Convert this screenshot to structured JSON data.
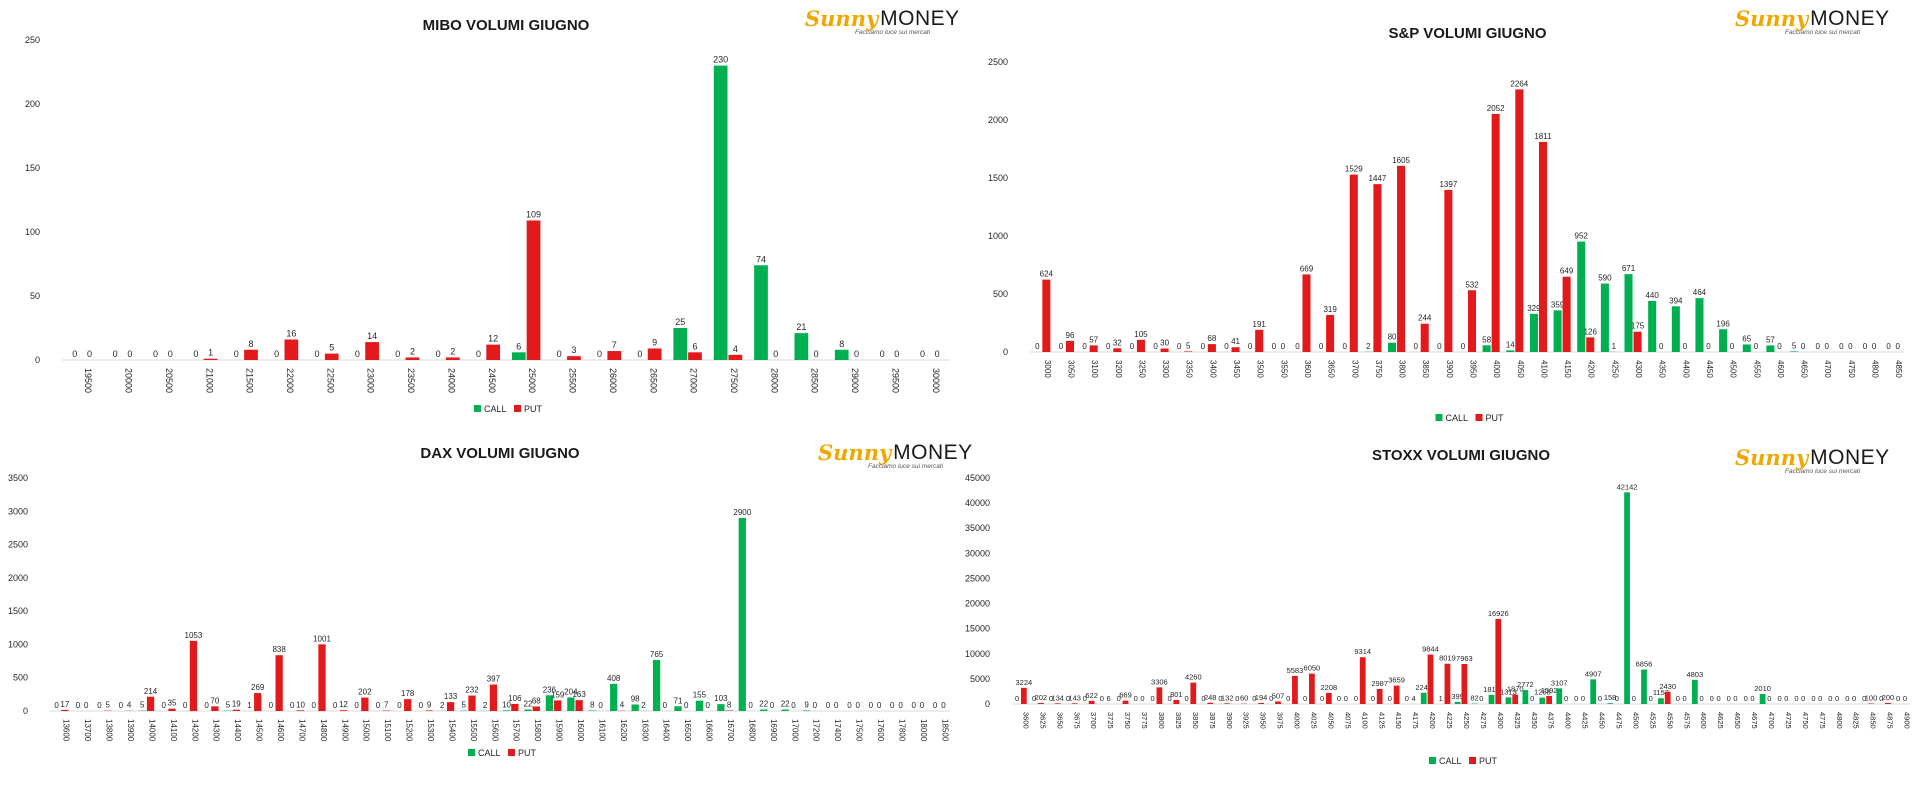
{
  "brand": {
    "name_a": "Sunny",
    "name_b": "MONEY",
    "tagline": "Facciamo luce sui mercati"
  },
  "colors": {
    "call": "#00b050",
    "put": "#e31a1c",
    "axis": "#d9d9d9",
    "text": "#262626"
  },
  "chart_data": [
    {
      "type": "bar",
      "title": "MIBO VOLUMI GIUGNO",
      "legend": "bottom-center",
      "ylim": [
        0,
        250
      ],
      "yticks": [
        0,
        50,
        100,
        150,
        200,
        250
      ],
      "categories": [
        "19500",
        "20000",
        "20500",
        "21000",
        "21500",
        "22000",
        "22500",
        "23000",
        "23500",
        "24000",
        "24500",
        "25000",
        "25500",
        "26000",
        "26500",
        "27000",
        "27500",
        "28000",
        "28500",
        "29000",
        "29500",
        "30000"
      ],
      "series": [
        {
          "name": "CALL",
          "values": [
            0,
            0,
            0,
            0,
            0,
            0,
            0,
            0,
            0,
            0,
            0,
            6,
            0,
            0,
            0,
            25,
            230,
            74,
            21,
            8,
            0,
            0
          ]
        },
        {
          "name": "PUT",
          "values": [
            0,
            0,
            0,
            1,
            8,
            16,
            5,
            14,
            2,
            2,
            12,
            109,
            3,
            7,
            9,
            6,
            4,
            0,
            0,
            0,
            0,
            0
          ]
        }
      ]
    },
    {
      "type": "bar",
      "title": "S&P VOLUMI GIUGNO",
      "legend": "bottom-center",
      "ylim": [
        0,
        2500
      ],
      "yticks": [
        0,
        500,
        1000,
        1500,
        2000,
        2500
      ],
      "categories": [
        "3000",
        "3050",
        "3100",
        "3200",
        "3250",
        "3300",
        "3350",
        "3400",
        "3450",
        "3500",
        "3550",
        "3600",
        "3650",
        "3700",
        "3750",
        "3800",
        "3850",
        "3900",
        "3950",
        "4000",
        "4050",
        "4100",
        "4150",
        "4200",
        "4250",
        "4300",
        "4350",
        "4400",
        "4450",
        "4500",
        "4550",
        "4600",
        "4650",
        "4700",
        "4750",
        "4800",
        "4850"
      ],
      "series": [
        {
          "name": "CALL",
          "values": [
            0,
            0,
            0,
            0,
            0,
            0,
            0,
            0,
            0,
            0,
            0,
            0,
            0,
            0,
            2,
            80,
            0,
            0,
            0,
            58,
            14,
            329,
            359,
            952,
            590,
            671,
            440,
            394,
            464,
            196,
            65,
            57,
            5,
            0,
            0,
            0,
            0
          ]
        },
        {
          "name": "PUT",
          "values": [
            624,
            96,
            57,
            32,
            105,
            30,
            5,
            68,
            41,
            191,
            0,
            669,
            319,
            1529,
            1447,
            1605,
            244,
            1397,
            532,
            2052,
            2264,
            1811,
            649,
            126,
            1,
            175,
            0,
            0,
            0,
            0,
            0,
            0,
            0,
            0,
            0,
            0,
            0
          ]
        }
      ]
    },
    {
      "type": "bar",
      "title": "DAX VOLUMI GIUGNO",
      "legend": "bottom-center",
      "ylim": [
        0,
        3500
      ],
      "yticks": [
        0,
        500,
        1000,
        1500,
        2000,
        2500,
        3000,
        3500
      ],
      "categories": [
        "13600",
        "13700",
        "13800",
        "13900",
        "14000",
        "14100",
        "14200",
        "14300",
        "14400",
        "14500",
        "14600",
        "14700",
        "14800",
        "14900",
        "15000",
        "15100",
        "15200",
        "15300",
        "15400",
        "15500",
        "15600",
        "15700",
        "15800",
        "15900",
        "16000",
        "16100",
        "16200",
        "16300",
        "16400",
        "16500",
        "16600",
        "16700",
        "16800",
        "16900",
        "17000",
        "17200",
        "17400",
        "17500",
        "17600",
        "17800",
        "18000",
        "18500"
      ],
      "series": [
        {
          "name": "CALL",
          "values": [
            0,
            0,
            0,
            0,
            5,
            0,
            0,
            0,
            5,
            1,
            0,
            0,
            0,
            0,
            0,
            0,
            0,
            0,
            2,
            5,
            2,
            10,
            22,
            236,
            204,
            8,
            408,
            98,
            765,
            71,
            155,
            103,
            2900,
            22,
            22,
            9,
            0,
            0,
            0,
            0,
            0,
            0
          ]
        },
        {
          "name": "PUT",
          "values": [
            17,
            0,
            5,
            4,
            214,
            35,
            1053,
            70,
            19,
            269,
            838,
            10,
            1001,
            12,
            202,
            7,
            178,
            9,
            133,
            232,
            397,
            106,
            68,
            159,
            163,
            0,
            4,
            2,
            0,
            0,
            0,
            8,
            0,
            0,
            0,
            0,
            0,
            0,
            0,
            0,
            0,
            0
          ]
        }
      ]
    },
    {
      "type": "bar",
      "title": "STOXX VOLUMI GIUGNO",
      "legend": "bottom-center",
      "ylim": [
        0,
        45000
      ],
      "yticks": [
        0,
        5000,
        10000,
        15000,
        20000,
        25000,
        30000,
        35000,
        40000,
        45000
      ],
      "categories": [
        "3600",
        "3625",
        "3650",
        "3675",
        "3700",
        "3725",
        "3750",
        "3775",
        "3800",
        "3825",
        "3850",
        "3875",
        "3900",
        "3925",
        "3950",
        "3975",
        "4000",
        "4025",
        "4050",
        "4075",
        "4100",
        "4125",
        "4150",
        "4175",
        "4200",
        "4225",
        "4250",
        "4275",
        "4300",
        "4325",
        "4350",
        "4375",
        "4400",
        "4425",
        "4450",
        "4475",
        "4500",
        "4525",
        "4550",
        "4575",
        "4600",
        "4625",
        "4650",
        "4675",
        "4700",
        "4725",
        "4750",
        "4775",
        "4800",
        "4825",
        "4850",
        "4875",
        "4900"
      ],
      "series": [
        {
          "name": "CALL",
          "values": [
            0,
            0,
            0,
            0,
            0,
            0,
            0,
            0,
            0,
            0,
            0,
            0,
            0,
            0,
            0,
            0,
            0,
            0,
            0,
            0,
            0,
            0,
            0,
            0,
            2240,
            1,
            399,
            82,
            1818,
            1313,
            2772,
            1268,
            3107,
            0,
            4907,
            158,
            42142,
            6856,
            1153,
            0,
            4803,
            0,
            0,
            0,
            2010,
            0,
            0,
            0,
            0,
            0,
            0,
            0,
            0
          ]
        },
        {
          "name": "PUT",
          "values": [
            3224,
            202,
            134,
            143,
            622,
            6,
            669,
            0,
            3306,
            801,
            4260,
            248,
            132,
            60,
            194,
            507,
            5583,
            6050,
            2208,
            0,
            9314,
            2987,
            3659,
            4,
            9844,
            8019,
            7963,
            0,
            16926,
            1870,
            0,
            1592,
            0,
            0,
            0,
            0,
            0,
            0,
            2430,
            0,
            0,
            0,
            0,
            0,
            0,
            0,
            0,
            0,
            0,
            0,
            100,
            200,
            0
          ]
        }
      ]
    }
  ]
}
